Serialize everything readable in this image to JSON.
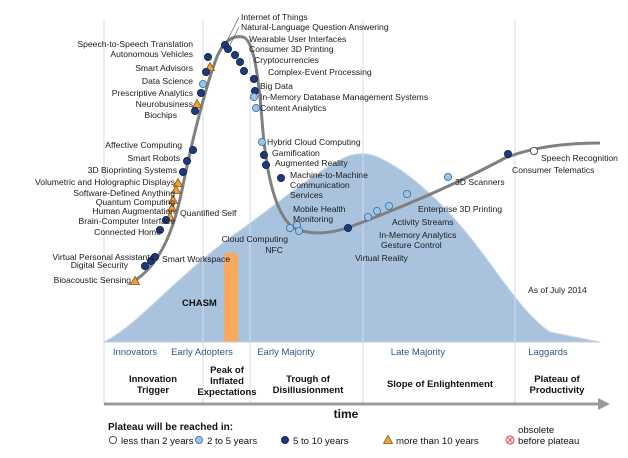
{
  "adoption_labels": [
    "Innovators",
    "Early Adopters",
    "Early Majority",
    "Late Majority",
    "Laggards"
  ],
  "phases": [
    [
      "Innovation",
      "Trigger"
    ],
    [
      "Peak of",
      "Inflated",
      "Expectations"
    ],
    [
      "Trough of",
      "Disillusionment"
    ],
    [
      "Slope of Enlightenment"
    ],
    [
      "Plateau of",
      "Productivity"
    ]
  ],
  "chasm_label": "CHASM",
  "as_of": "As of July 2014",
  "time_label": "time",
  "legend": {
    "title": "Plateau will be reached in:",
    "items": [
      {
        "kind": "lt2",
        "lines": [
          "less than 2 years"
        ]
      },
      {
        "kind": "2to5",
        "lines": [
          "2 to 5 years"
        ]
      },
      {
        "kind": "5to10",
        "lines": [
          "5 to 10 years"
        ]
      },
      {
        "kind": "gt10",
        "lines": [
          "more than 10 years"
        ]
      },
      {
        "kind": "obsolete",
        "lines": [
          "obsolete",
          "before plateau"
        ]
      }
    ]
  },
  "colors": {
    "bell": "#a9c3de",
    "bell_edge": "#c6d7ea",
    "curve": "#808080",
    "chasm": "#f6a95f",
    "lt2": "#ffffff",
    "2to5": "#9cc3e6",
    "5to10": "#1f3a78",
    "gt10": "#f2a23a",
    "obsolete": "#e06666",
    "adoption_text": "#2a5a8a"
  },
  "technologies": [
    {
      "name": "Internet of Things",
      "cat": "5to10"
    },
    {
      "name": "Natural-Language Question Answering",
      "cat": "5to10"
    },
    {
      "name": "Speech-to-Speech Translation",
      "cat": "5to10"
    },
    {
      "name": "Wearable User Interfaces",
      "cat": "5to10"
    },
    {
      "name": "Autonomous Vehicles",
      "cat": "gt10"
    },
    {
      "name": "Consumer 3D Printing",
      "cat": "5to10"
    },
    {
      "name": "Cryptocurrencies",
      "cat": "5to10"
    },
    {
      "name": "Smart Advisors",
      "cat": "5to10"
    },
    {
      "name": "Complex-Event Processing",
      "cat": "5to10"
    },
    {
      "name": "Data Science",
      "cat": "2to5"
    },
    {
      "name": "Prescriptive Analytics",
      "cat": "5to10"
    },
    {
      "name": "Big Data",
      "cat": "5to10"
    },
    {
      "name": "In-Memory Database Management Systems",
      "cat": "2to5"
    },
    {
      "name": "Neurobusiness",
      "cat": "gt10"
    },
    {
      "name": "Content Analytics",
      "cat": "2to5"
    },
    {
      "name": "Biochips",
      "cat": "5to10"
    },
    {
      "name": "Hybrid Cloud Computing",
      "cat": "2to5"
    },
    {
      "name": "Affective Computing",
      "cat": "5to10"
    },
    {
      "name": "Gamification",
      "cat": "5to10"
    },
    {
      "name": "Augmented Reality",
      "cat": "5to10"
    },
    {
      "name": "Smart Robots",
      "cat": "5to10"
    },
    {
      "name": "Speech Recognition",
      "cat": "lt2"
    },
    {
      "name": "3D Bioprinting Systems",
      "cat": "5to10"
    },
    {
      "name": "Consumer Telematics",
      "cat": "5to10"
    },
    {
      "name": "Volumetric and Holographic Displays",
      "cat": "gt10"
    },
    {
      "name": "Machine-to-Machine Communication Services",
      "cat": "5to10",
      "lines": [
        "Machine-to-Machine",
        "Communication",
        "Services"
      ]
    },
    {
      "name": "3D Scanners",
      "cat": "2to5"
    },
    {
      "name": "Software-Defined Anything",
      "cat": "gt10"
    },
    {
      "name": "Quantum Computing",
      "cat": "gt10"
    },
    {
      "name": "Enterprise 3D Printing",
      "cat": "2to5"
    },
    {
      "name": "Human Augmentation",
      "cat": "gt10"
    },
    {
      "name": "Mobile Health Monitoring",
      "cat": "2to5",
      "lines": [
        "Mobile Health",
        "Monitoring"
      ]
    },
    {
      "name": "Brain-Computer Interface",
      "cat": "gt10"
    },
    {
      "name": "Quantified Self",
      "cat": "5to10"
    },
    {
      "name": "Activity Streams",
      "cat": "2to5"
    },
    {
      "name": "Connected Home",
      "cat": "5to10"
    },
    {
      "name": "In-Memory Analytics",
      "cat": "2to5"
    },
    {
      "name": "Gesture Control",
      "cat": "2to5"
    },
    {
      "name": "Cloud Computing",
      "cat": "2to5"
    },
    {
      "name": "NFC",
      "cat": "2to5"
    },
    {
      "name": "Virtual Reality",
      "cat": "5to10"
    },
    {
      "name": "Virtual Personal Assistants",
      "cat": "5to10"
    },
    {
      "name": "Smart Workspace",
      "cat": "5to10"
    },
    {
      "name": "Digital Security",
      "cat": "5to10"
    },
    {
      "name": "Bioacoustic Sensing",
      "cat": "gt10"
    }
  ]
}
